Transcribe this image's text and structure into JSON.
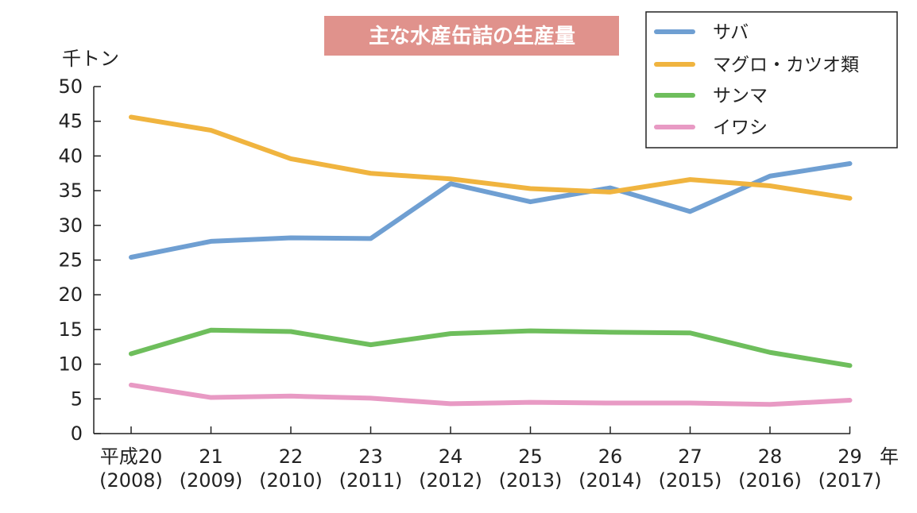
{
  "chart_data": {
    "type": "line",
    "title": "主な水産缶詰の生産量",
    "ylabel": "千トン",
    "xlabel": "年",
    "ylim": [
      0,
      50
    ],
    "yticks": [
      0,
      5,
      10,
      15,
      20,
      25,
      30,
      35,
      40,
      45,
      50
    ],
    "categories": [
      "平成20",
      "21",
      "22",
      "23",
      "24",
      "25",
      "26",
      "27",
      "28",
      "29"
    ],
    "categories_western": [
      "(2008)",
      "(2009)",
      "(2010)",
      "(2011)",
      "(2012)",
      "(2013)",
      "(2014)",
      "(2015)",
      "(2016)",
      "(2017)"
    ],
    "legend_position": "top-right",
    "grid": false,
    "series": [
      {
        "name": "サバ",
        "color": "#6f9fd2",
        "values": [
          25.4,
          27.7,
          28.2,
          28.1,
          36.0,
          33.4,
          35.4,
          32.0,
          37.1,
          38.9
        ]
      },
      {
        "name": "マグロ・カツオ類",
        "color": "#f0b43f",
        "values": [
          45.6,
          43.7,
          39.6,
          37.5,
          36.7,
          35.3,
          34.8,
          36.6,
          35.7,
          33.9
        ]
      },
      {
        "name": "サンマ",
        "color": "#6ebe5c",
        "values": [
          11.5,
          14.9,
          14.7,
          12.8,
          14.4,
          14.8,
          14.6,
          14.5,
          11.7,
          9.8
        ]
      },
      {
        "name": "イワシ",
        "color": "#e89ac4",
        "values": [
          7.0,
          5.2,
          5.4,
          5.1,
          4.3,
          4.5,
          4.4,
          4.4,
          4.2,
          4.8
        ]
      }
    ]
  }
}
